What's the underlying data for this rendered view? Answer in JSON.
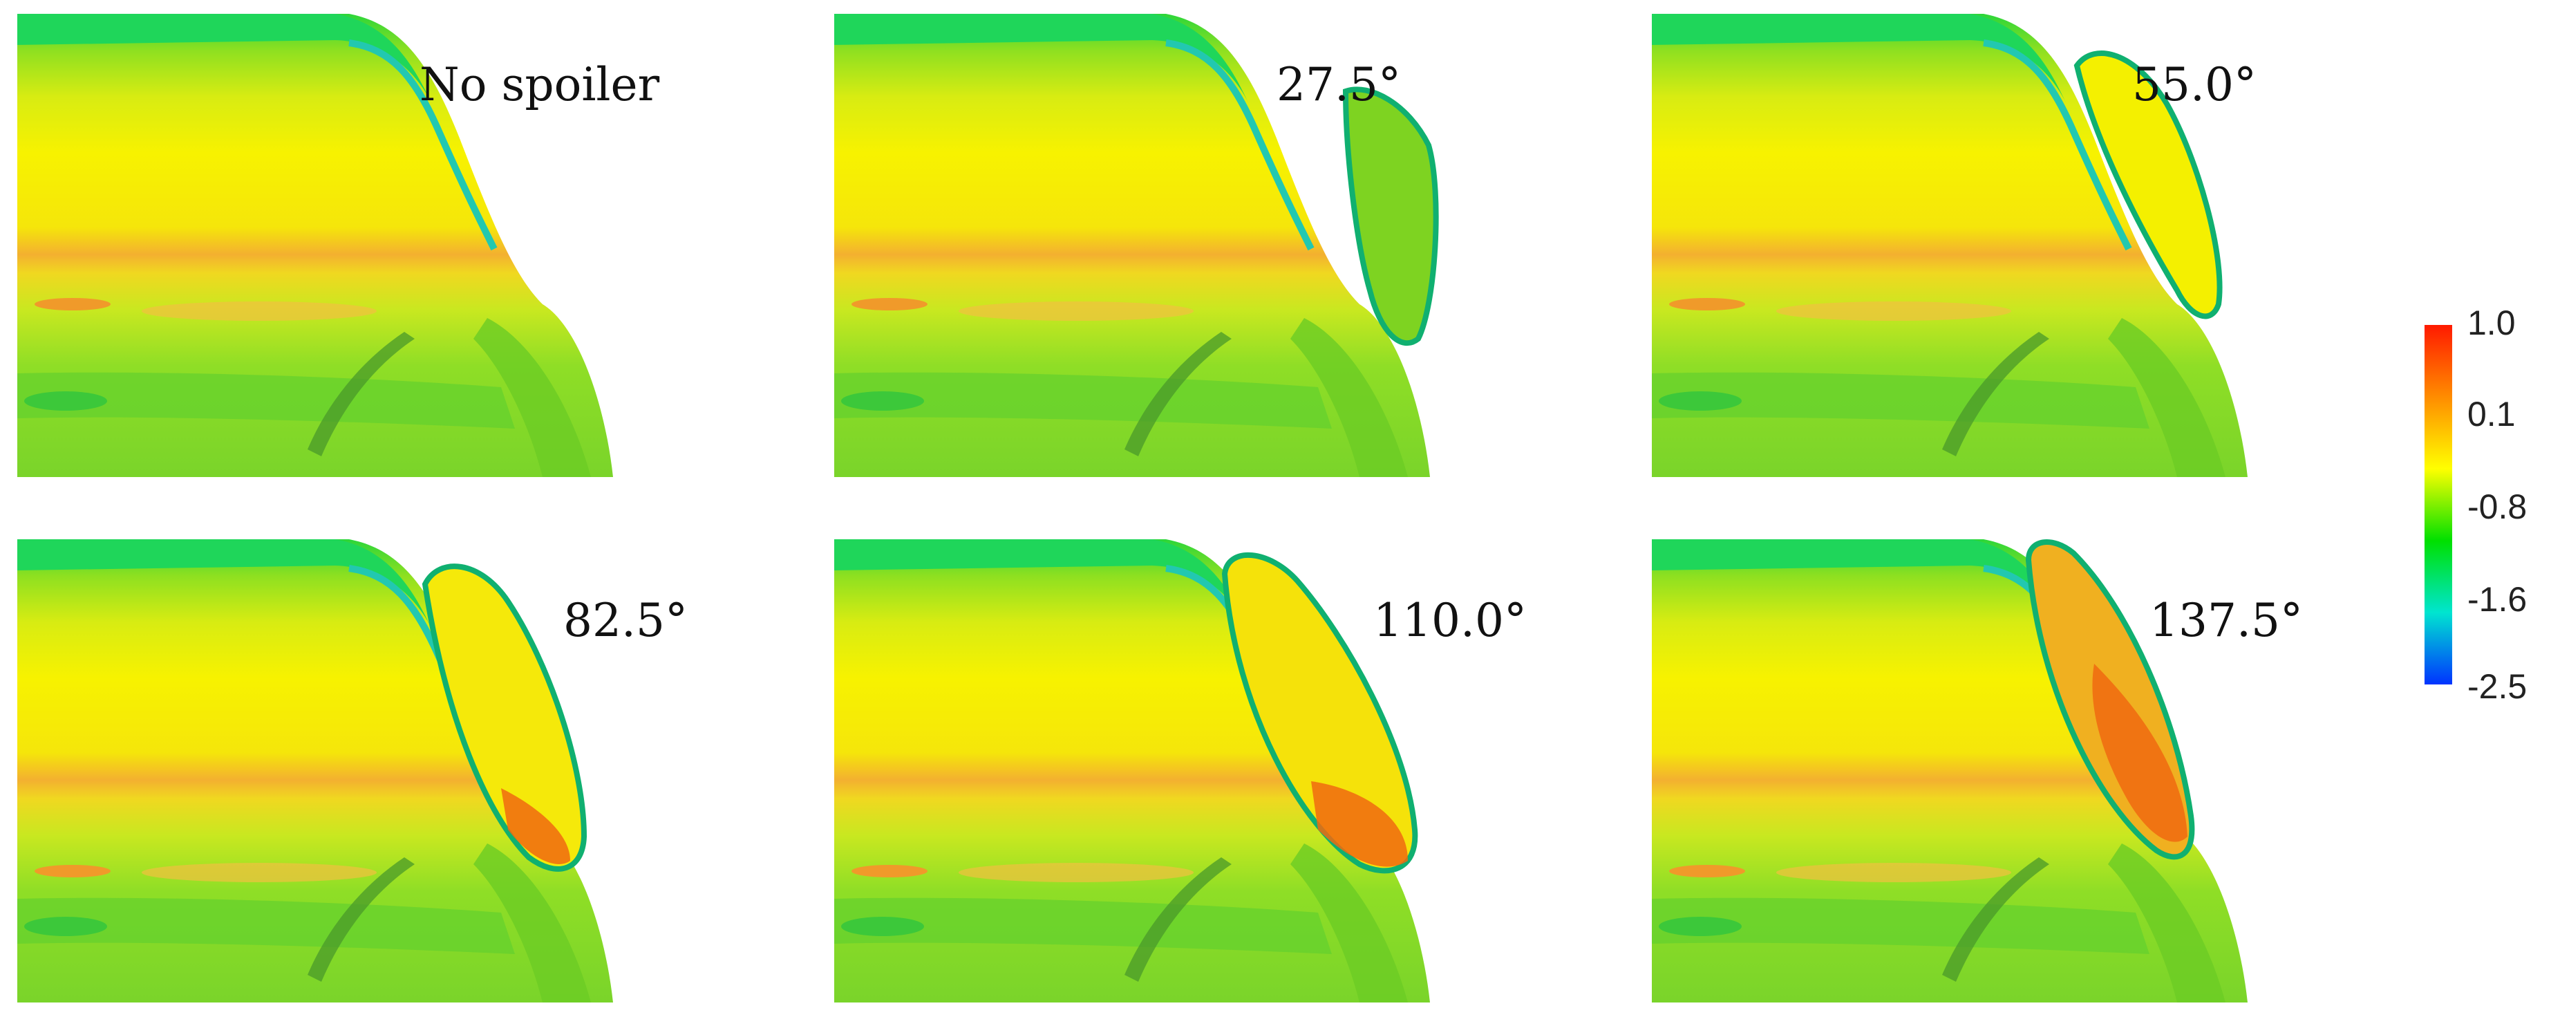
{
  "panels": [
    {
      "label": "No spoiler",
      "spoiler": false
    },
    {
      "label": "27.5°",
      "spoiler": true,
      "angle": 27.5
    },
    {
      "label": "55.0°",
      "spoiler": true,
      "angle": 55.0
    },
    {
      "label": "82.5°",
      "spoiler": true,
      "angle": 82.5
    },
    {
      "label": "110.0°",
      "spoiler": true,
      "angle": 110.0
    },
    {
      "label": "137.5°",
      "spoiler": true,
      "angle": 137.5
    }
  ],
  "colorbar": {
    "ticks": [
      "1.0",
      "0.1",
      "-0.8",
      "-1.6",
      "-2.5"
    ],
    "colors": [
      "#ff1a00",
      "#ff8c00",
      "#ffff00",
      "#00e000",
      "#00e5d0",
      "#0033ff"
    ]
  }
}
